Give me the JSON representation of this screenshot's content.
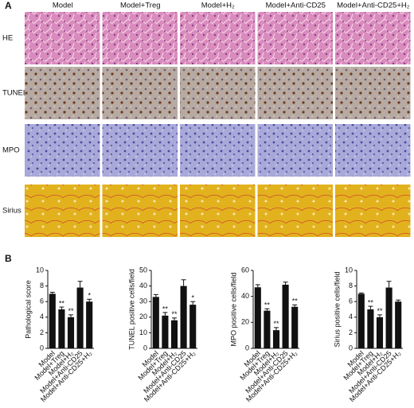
{
  "figure": {
    "panel_a": {
      "label": "A",
      "columns": [
        "Model",
        "Model+Treg",
        "Model+H₂",
        "Model+Anti-CD25",
        "Model+Anti-CD25+H₂"
      ],
      "rows": [
        "HE",
        "TUNEL",
        "MPO",
        "Sirius"
      ]
    },
    "panel_b": {
      "label": "B"
    }
  },
  "chart_data": [
    {
      "type": "bar",
      "ylabel": "Pathological score",
      "categories": [
        "Model",
        "Model+Treg",
        "Model+H₂",
        "Model+Anti-CD25",
        "Model+Anti-CD25+H₂"
      ],
      "values": [
        7.0,
        5.0,
        4.0,
        7.8,
        6.0
      ],
      "errors": [
        0.2,
        0.3,
        0.3,
        0.8,
        0.3
      ],
      "significance": [
        null,
        "**",
        "**",
        null,
        "*"
      ],
      "color": "#111111",
      "ylim": [
        0,
        10
      ],
      "yticks": [
        0,
        2,
        4,
        6,
        8,
        10
      ]
    },
    {
      "type": "bar",
      "ylabel": "TUNEL positive cells/field",
      "categories": [
        "Model",
        "Model+Treg",
        "Model+H₂",
        "Model+Anti-CD25",
        "Model+Anti-CD25+H₂"
      ],
      "values": [
        33,
        21,
        18,
        40,
        28
      ],
      "errors": [
        1.5,
        2,
        1.5,
        4,
        2
      ],
      "significance": [
        null,
        "**",
        "**",
        null,
        "*"
      ],
      "color": "#111111",
      "ylim": [
        0,
        50
      ],
      "yticks": [
        0,
        10,
        20,
        30,
        40,
        50
      ]
    },
    {
      "type": "bar",
      "ylabel": "MPO positive cells/field",
      "categories": [
        "Model",
        "Model+Treg",
        "Model+H₂",
        "Model+Anti-CD25",
        "Model+Anti-CD25+H₂"
      ],
      "values": [
        47,
        29,
        14,
        49,
        32
      ],
      "errors": [
        2,
        1.5,
        2,
        2,
        1.5
      ],
      "significance": [
        null,
        "**",
        "**",
        null,
        "**"
      ],
      "color": "#111111",
      "ylim": [
        0,
        60
      ],
      "yticks": [
        0,
        20,
        40,
        60
      ]
    },
    {
      "type": "bar",
      "ylabel": "Sirius positive cells/field",
      "categories": [
        "Model",
        "Model+Treg",
        "Model+H₂",
        "Model+Anti-CD25",
        "Model+Anti-CD25+H₂"
      ],
      "values": [
        7.0,
        5.0,
        4.0,
        7.8,
        6.0
      ],
      "errors": [
        0.1,
        0.4,
        0.3,
        0.8,
        0.2
      ],
      "significance": [
        null,
        "**",
        "**",
        null,
        null
      ],
      "color": "#111111",
      "ylim": [
        0,
        10
      ],
      "yticks": [
        0,
        2,
        4,
        6,
        8,
        10
      ]
    }
  ]
}
